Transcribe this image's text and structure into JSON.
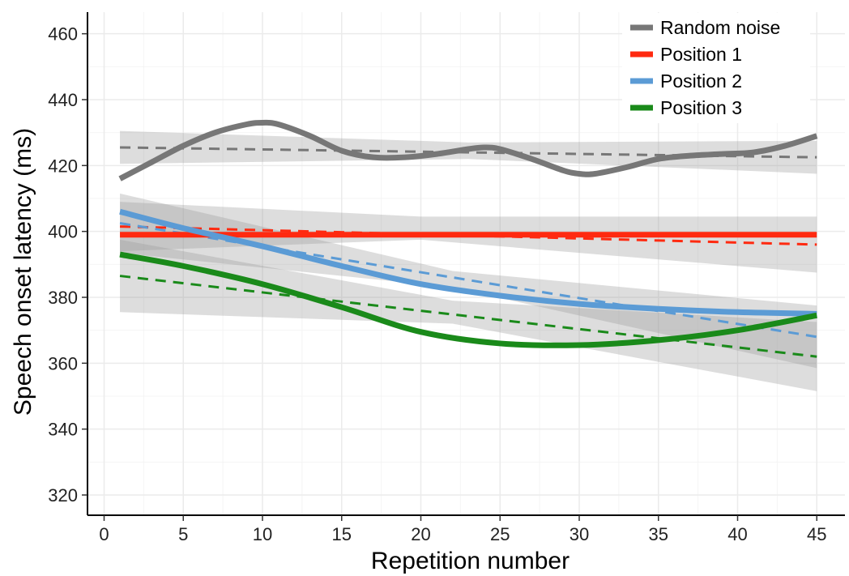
{
  "chart_data": {
    "type": "line",
    "title": "",
    "xlabel": "Repetition number",
    "ylabel": "Speech onset latency (ms)",
    "xlim": [
      -1,
      47
    ],
    "ylim": [
      314,
      466
    ],
    "xticks": [
      0,
      5,
      10,
      15,
      20,
      25,
      30,
      35,
      40,
      45
    ],
    "yticks": [
      320,
      340,
      360,
      380,
      400,
      420,
      440,
      460
    ],
    "grid": true,
    "legend_position": "top-right",
    "series": [
      {
        "name": "Random noise",
        "color": "#777777",
        "smooth": {
          "x": [
            1,
            3,
            5,
            7,
            9,
            10,
            11,
            13,
            15,
            17,
            19,
            21,
            23,
            24,
            25,
            27,
            29,
            30,
            31,
            33,
            35,
            37,
            39,
            41,
            43,
            45
          ],
          "y": [
            416,
            421,
            426,
            430,
            432.5,
            433,
            432.5,
            429,
            424.5,
            422.5,
            422.5,
            423.5,
            425,
            425.5,
            425,
            422,
            418.5,
            417.5,
            417.5,
            419.5,
            422,
            423,
            423.5,
            424,
            426,
            429
          ]
        },
        "linear": {
          "x": [
            1,
            45
          ],
          "y": [
            425.5,
            422.5
          ]
        },
        "ci": {
          "x": [
            1,
            23,
            45
          ],
          "lower": [
            420.5,
            422,
            417.5
          ],
          "upper": [
            430.5,
            427,
            427.5
          ]
        }
      },
      {
        "name": "Position 1",
        "color": "#ff2a10",
        "smooth": {
          "x": [
            1,
            45
          ],
          "y": [
            399,
            399
          ]
        },
        "linear": {
          "x": [
            1,
            45
          ],
          "y": [
            401.5,
            396
          ]
        },
        "ci": {
          "x": [
            1,
            20,
            45
          ],
          "lower": [
            394,
            397.5,
            387.5
          ],
          "upper": [
            409,
            404.5,
            404.5
          ]
        }
      },
      {
        "name": "Position 2",
        "color": "#5b9bd5",
        "smooth": {
          "x": [
            1,
            5,
            10,
            15,
            20,
            25,
            30,
            35,
            40,
            45
          ],
          "y": [
            406,
            401,
            395.5,
            389.5,
            384,
            380.5,
            378,
            376.5,
            375.5,
            375
          ]
        },
        "linear": {
          "x": [
            1,
            45
          ],
          "y": [
            402.5,
            368
          ]
        },
        "ci": {
          "x": [
            1,
            22,
            45
          ],
          "lower": [
            393.5,
            383,
            358.5
          ],
          "upper": [
            411.5,
            388,
            377.5
          ]
        }
      },
      {
        "name": "Position 3",
        "color": "#1a8a1a",
        "smooth": {
          "x": [
            1,
            5,
            10,
            15,
            20,
            25,
            30,
            35,
            40,
            45
          ],
          "y": [
            393,
            389.5,
            384,
            377,
            369.5,
            366,
            365.5,
            367,
            370,
            374.5
          ]
        },
        "linear": {
          "x": [
            1,
            45
          ],
          "y": [
            386.5,
            362
          ]
        },
        "ci": {
          "x": [
            1,
            22,
            45
          ],
          "lower": [
            375.5,
            372,
            351.5
          ],
          "upper": [
            397.5,
            379,
            372.5
          ]
        }
      }
    ]
  }
}
